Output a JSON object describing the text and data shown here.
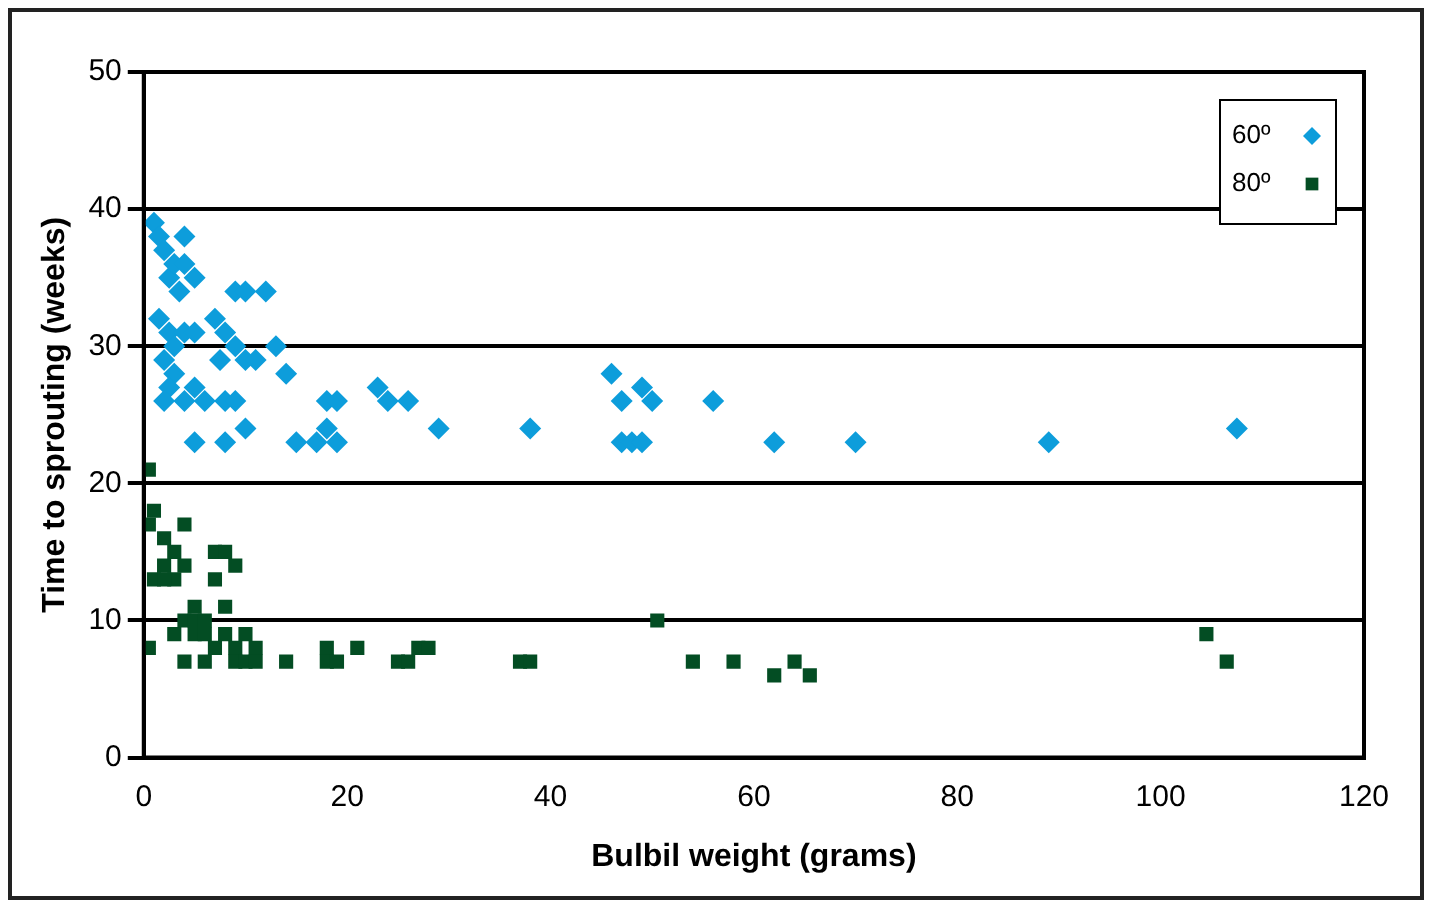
{
  "chart_data": {
    "type": "scatter",
    "xlabel": "Bulbil weight (grams)",
    "ylabel": "Time to sprouting (weeks)",
    "xlim": [
      0,
      120
    ],
    "xticks": [
      0,
      20,
      40,
      60,
      80,
      100,
      120
    ],
    "ylim": [
      0,
      50
    ],
    "yticks": [
      0,
      10,
      20,
      30,
      40,
      50
    ],
    "grid": "y",
    "legend": "top right",
    "series": [
      {
        "name": "60º",
        "color": "#0d9ddb",
        "marker": "diamond",
        "x": [
          1,
          1.5,
          2,
          4,
          2.5,
          3,
          4,
          3.5,
          5,
          9,
          10,
          12,
          1.5,
          2.5,
          3,
          4,
          5,
          7,
          8,
          7.5,
          9,
          10,
          11,
          13,
          14,
          2,
          3,
          2.5,
          4,
          5,
          2,
          6,
          8,
          9,
          10,
          18,
          19,
          18,
          19,
          5,
          8,
          15,
          17,
          23,
          24,
          26,
          29,
          38,
          46,
          47,
          49,
          50,
          47,
          48,
          49,
          56,
          62,
          70,
          89,
          107.5
        ],
        "values": [
          39,
          38,
          37,
          38,
          35,
          36,
          36,
          34,
          35,
          34,
          34,
          34,
          32,
          31,
          30,
          31,
          31,
          32,
          31,
          29,
          30,
          29,
          29,
          30,
          28,
          29,
          28,
          27,
          26,
          27,
          26,
          26,
          26,
          26,
          24,
          26,
          26,
          24,
          23,
          23,
          23,
          23,
          23,
          27,
          26,
          26,
          24,
          24,
          28,
          26,
          27,
          26,
          23,
          23,
          23,
          26,
          23,
          23,
          23,
          24
        ]
      },
      {
        "name": "80º",
        "color": "#034d23",
        "marker": "square",
        "x": [
          0.5,
          0.5,
          1,
          2,
          1,
          2,
          3,
          4,
          3,
          2,
          4,
          7,
          8,
          9,
          7,
          8,
          0.5,
          3,
          4,
          5,
          5,
          6,
          5,
          6,
          7,
          8,
          9,
          10,
          11,
          4,
          6,
          9,
          10,
          11,
          14,
          18,
          18,
          19,
          21,
          25,
          26,
          27,
          28,
          37,
          38,
          50.5,
          54,
          58,
          62,
          64,
          65.5,
          104.5,
          106.5
        ],
        "values": [
          21,
          17,
          18,
          16,
          13,
          14,
          15,
          14,
          13,
          13,
          17,
          15,
          15,
          14,
          13,
          11,
          8,
          9,
          10,
          11,
          10,
          10,
          9,
          9,
          8,
          9,
          8,
          9,
          8,
          7,
          7,
          7,
          7,
          7,
          7,
          8,
          7,
          7,
          8,
          7,
          7,
          8,
          8,
          7,
          7,
          10,
          7,
          7,
          6,
          7,
          6,
          9,
          7
        ]
      }
    ]
  }
}
